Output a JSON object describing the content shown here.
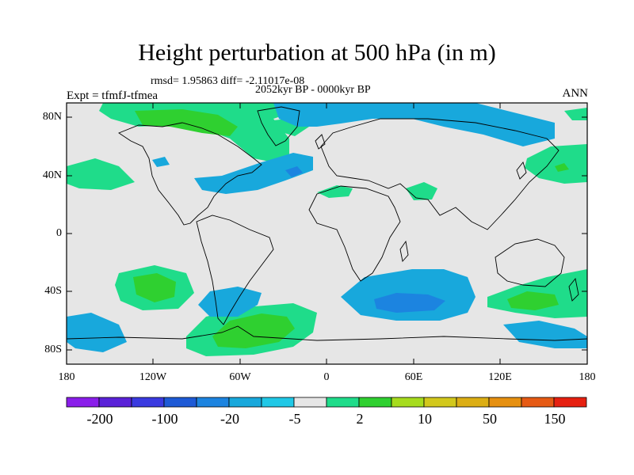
{
  "header": {
    "title": "Height perturbation at 500 hPa (in m)",
    "stats": "rmsd= 1.95863 diff= -2.11017e-08",
    "period": "2052kyr BP - 0000kyr BP",
    "experiment": "Expt = tfmfJ-tfmea",
    "season": "ANN"
  },
  "axes": {
    "y_labels": [
      "80N",
      "40N",
      "0",
      "40S",
      "80S"
    ],
    "x_labels": [
      "180",
      "120W",
      "60W",
      "0",
      "60E",
      "120E",
      "180"
    ]
  },
  "colorbar": {
    "labels": [
      "-200",
      "-100",
      "-20",
      "-5",
      "2",
      "10",
      "50",
      "150"
    ],
    "colors": [
      "#8a1eea",
      "#5a22d8",
      "#3a3ae0",
      "#1e5ad6",
      "#1c84e0",
      "#18a8dc",
      "#20c8e6",
      "#e6e6e6",
      "#1fdc8a",
      "#2fd030",
      "#a6dc1e",
      "#d2c81c",
      "#dcae14",
      "#e69010",
      "#e65a14",
      "#e62010"
    ]
  },
  "colors": {
    "neutral": "#e6e6e6",
    "pos1": "#1fdc8a",
    "pos2": "#2fd030",
    "neg1": "#18a8dc",
    "neg2": "#1c84e0"
  }
}
